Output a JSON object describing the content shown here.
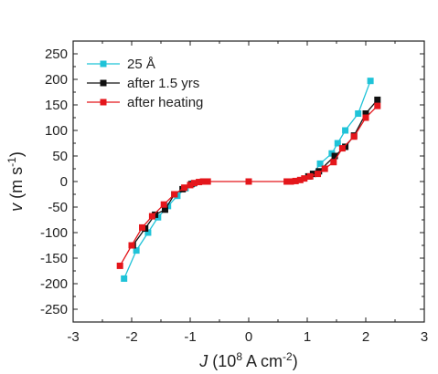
{
  "chart_data": {
    "type": "scatter",
    "xlabel": {
      "italic": "J",
      "text": " (10",
      "sup1": "8",
      "text2": " A cm",
      "sup2": "-2",
      "text3": ")"
    },
    "ylabel": {
      "italic": "v",
      "text": " (m s",
      "sup": "-1",
      "text2": ")"
    },
    "xlim": [
      -3,
      3
    ],
    "ylim": [
      -275,
      275
    ],
    "xticks": [
      -3,
      -2,
      -1,
      0,
      1,
      2,
      3
    ],
    "xtick_labels": [
      "-3",
      "-2",
      "-1",
      "0",
      "1",
      "2",
      "3"
    ],
    "yticks": [
      -250,
      -200,
      -150,
      -100,
      -50,
      0,
      50,
      100,
      150,
      200,
      250
    ],
    "ytick_labels": [
      "-250",
      "-200",
      "-150",
      "-100",
      "-50",
      "0",
      "50",
      "100",
      "150",
      "200",
      "250"
    ],
    "legend_position": "top-left",
    "series": [
      {
        "name": "25 Å",
        "color": "#1fc3d8",
        "marker": "square",
        "segments": [
          [
            [
              -2.13,
              -190
            ],
            [
              -1.92,
              -135
            ],
            [
              -1.72,
              -100
            ],
            [
              -1.55,
              -70
            ],
            [
              -1.38,
              -48
            ],
            [
              -1.22,
              -28
            ],
            [
              -1.08,
              -13
            ],
            [
              -0.95,
              -4
            ]
          ],
          [
            [
              1.1,
              15
            ],
            [
              1.22,
              35
            ],
            [
              1.42,
              55
            ],
            [
              1.52,
              75
            ],
            [
              1.65,
              100
            ],
            [
              1.87,
              133
            ],
            [
              2.08,
              197
            ]
          ]
        ]
      },
      {
        "name": "after 1.5 yrs",
        "color": "#111111",
        "marker": "square",
        "segments": [
          [
            [
              -1.98,
              -125
            ],
            [
              -1.77,
              -92
            ],
            [
              -1.6,
              -65
            ],
            [
              -1.43,
              -55
            ],
            [
              -1.27,
              -25
            ],
            [
              -1.13,
              -15
            ],
            [
              -0.98,
              -5
            ]
          ],
          [
            [
              1.02,
              10
            ],
            [
              1.1,
              15
            ],
            [
              1.2,
              20
            ],
            [
              1.47,
              50
            ],
            [
              1.65,
              68
            ],
            [
              1.8,
              90
            ],
            [
              2.0,
              133
            ],
            [
              2.2,
              160
            ]
          ]
        ]
      },
      {
        "name": "after heating",
        "color": "#e4161b",
        "marker": "square",
        "segments": [
          [
            [
              -2.2,
              -165
            ],
            [
              -2.0,
              -125
            ],
            [
              -1.82,
              -90
            ],
            [
              -1.65,
              -68
            ],
            [
              -1.45,
              -45
            ],
            [
              -1.27,
              -25
            ],
            [
              -1.1,
              -12
            ],
            [
              -1.0,
              -7
            ],
            [
              -0.93,
              -3
            ],
            [
              -0.85,
              -1
            ],
            [
              -0.78,
              0
            ],
            [
              -0.7,
              0
            ],
            [
              0.0,
              0
            ],
            [
              0.65,
              0
            ],
            [
              0.72,
              0
            ],
            [
              0.8,
              1
            ],
            [
              0.88,
              3
            ],
            [
              0.95,
              6
            ],
            [
              1.05,
              10
            ],
            [
              1.18,
              15
            ],
            [
              1.3,
              25
            ],
            [
              1.45,
              38
            ],
            [
              1.6,
              65
            ],
            [
              1.8,
              88
            ],
            [
              2.0,
              125
            ],
            [
              2.2,
              148
            ]
          ]
        ]
      }
    ]
  }
}
